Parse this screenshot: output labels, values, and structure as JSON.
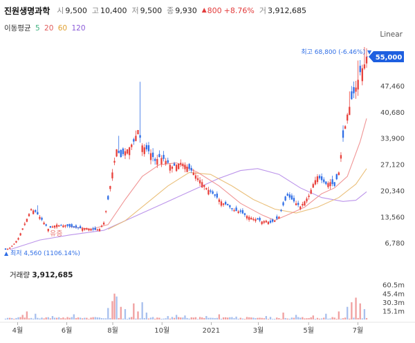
{
  "header": {
    "name": "진원생명과학",
    "open_label": "시",
    "open": "9,500",
    "high_label": "고",
    "high": "10,400",
    "low_label": "저",
    "low": "9,500",
    "close_label": "종",
    "close": "9,930",
    "change_icon": "triangle-up-icon",
    "change": "800",
    "change_pct": "+8.76%",
    "volume_label": "거",
    "volume": "3,912,685"
  },
  "ma_legend": {
    "label": "이동평균",
    "periods": [
      {
        "value": "5",
        "color": "#3fb27f"
      },
      {
        "value": "20",
        "color": "#e05a5a"
      },
      {
        "value": "60",
        "color": "#e0a030"
      },
      {
        "value": "120",
        "color": "#8a5ad8"
      }
    ]
  },
  "scale_mode": "Linear",
  "price_badge": "55,000",
  "volume_title": {
    "label": "거래량",
    "value": "3,912,685"
  },
  "chart_data": {
    "type": "candlestick",
    "x_ticks": [
      "4월",
      "6월",
      "8월",
      "10월",
      "2021",
      "3월",
      "5월",
      "7월"
    ],
    "y_ticks": [
      6780,
      13560,
      20340,
      27120,
      33900,
      40680,
      47460
    ],
    "y_tick_labels": [
      "6,780",
      "13,560",
      "20,340",
      "27,120",
      "33,900",
      "40,680",
      "47,460"
    ],
    "ylim": [
      2500,
      57500
    ],
    "last_price": 55000,
    "max_annotation": {
      "label": "최고",
      "value": "68,800",
      "pct": "(-6.46%)"
    },
    "min_annotation": {
      "label": "최저",
      "value": "4,560",
      "pct": "(1106.14%)"
    },
    "marker_label": "유증",
    "price_path": [
      [
        0,
        5000
      ],
      [
        2,
        5500
      ],
      [
        4,
        6500
      ],
      [
        6,
        8000
      ],
      [
        8,
        10500
      ],
      [
        10,
        13000
      ],
      [
        12,
        15500
      ],
      [
        14,
        14800
      ],
      [
        16,
        13500
      ],
      [
        18,
        12000
      ],
      [
        20,
        10400
      ],
      [
        22,
        11000
      ],
      [
        24,
        11500
      ],
      [
        26,
        11200
      ],
      [
        28,
        11300
      ],
      [
        30,
        11000
      ],
      [
        32,
        10800
      ],
      [
        34,
        10600
      ],
      [
        36,
        10500
      ],
      [
        38,
        10600
      ],
      [
        40,
        10300
      ],
      [
        42,
        10100
      ],
      [
        44,
        10400
      ],
      [
        46,
        12000
      ],
      [
        48,
        18000
      ],
      [
        50,
        25000
      ],
      [
        52,
        31000
      ],
      [
        54,
        29000
      ],
      [
        56,
        30500
      ],
      [
        58,
        31500
      ],
      [
        60,
        33000
      ],
      [
        62,
        36000
      ],
      [
        64,
        32000
      ],
      [
        66,
        31000
      ],
      [
        68,
        30000
      ],
      [
        70,
        28000
      ],
      [
        72,
        29000
      ],
      [
        74,
        28500
      ],
      [
        76,
        27500
      ],
      [
        78,
        26500
      ],
      [
        80,
        27000
      ],
      [
        82,
        27500
      ],
      [
        84,
        27000
      ],
      [
        86,
        26000
      ],
      [
        88,
        25000
      ],
      [
        90,
        23500
      ],
      [
        92,
        22500
      ],
      [
        94,
        21000
      ],
      [
        96,
        20000
      ],
      [
        98,
        19000
      ],
      [
        100,
        18000
      ],
      [
        102,
        17000
      ],
      [
        104,
        16500
      ],
      [
        106,
        15500
      ],
      [
        108,
        15000
      ],
      [
        110,
        14800
      ],
      [
        112,
        14000
      ],
      [
        114,
        13500
      ],
      [
        116,
        13000
      ],
      [
        118,
        12800
      ],
      [
        120,
        12300
      ],
      [
        122,
        12500
      ],
      [
        124,
        12000
      ],
      [
        126,
        12500
      ],
      [
        128,
        13500
      ],
      [
        130,
        16500
      ],
      [
        132,
        19000
      ],
      [
        134,
        18000
      ],
      [
        136,
        17000
      ],
      [
        138,
        16200
      ],
      [
        140,
        17500
      ],
      [
        142,
        19000
      ],
      [
        144,
        22000
      ],
      [
        146,
        24000
      ],
      [
        148,
        23000
      ],
      [
        150,
        22000
      ],
      [
        152,
        22500
      ],
      [
        154,
        21500
      ],
      [
        156,
        25000
      ],
      [
        158,
        34000
      ],
      [
        160,
        40000
      ],
      [
        162,
        44000
      ],
      [
        164,
        47000
      ],
      [
        166,
        51000
      ],
      [
        168,
        53000
      ],
      [
        169,
        55000
      ]
    ],
    "spikes": [
      [
        15,
        16500
      ],
      [
        53,
        34500
      ],
      [
        63,
        48500
      ],
      [
        161,
        46000
      ],
      [
        165,
        54000
      ],
      [
        168,
        57500
      ]
    ],
    "ma20": [
      [
        30,
        11000
      ],
      [
        40,
        10300
      ],
      [
        48,
        11500
      ],
      [
        56,
        18000
      ],
      [
        64,
        24000
      ],
      [
        72,
        27000
      ],
      [
        80,
        27500
      ],
      [
        90,
        25000
      ],
      [
        100,
        21500
      ],
      [
        110,
        17000
      ],
      [
        120,
        14000
      ],
      [
        126,
        12600
      ],
      [
        132,
        14000
      ],
      [
        140,
        16000
      ],
      [
        148,
        19500
      ],
      [
        154,
        21000
      ],
      [
        160,
        24000
      ],
      [
        166,
        33000
      ],
      [
        169,
        39000
      ]
    ],
    "ma60": [
      [
        48,
        10300
      ],
      [
        56,
        12500
      ],
      [
        66,
        17000
      ],
      [
        76,
        21500
      ],
      [
        86,
        25000
      ],
      [
        96,
        24500
      ],
      [
        106,
        21500
      ],
      [
        116,
        18000
      ],
      [
        126,
        15500
      ],
      [
        136,
        14500
      ],
      [
        146,
        16000
      ],
      [
        156,
        18500
      ],
      [
        164,
        22000
      ],
      [
        169,
        26000
      ]
    ],
    "ma120": [
      [
        2,
        5000
      ],
      [
        16,
        7500
      ],
      [
        30,
        8800
      ],
      [
        46,
        10000
      ],
      [
        60,
        13500
      ],
      [
        74,
        17000
      ],
      [
        88,
        20500
      ],
      [
        100,
        23500
      ],
      [
        110,
        25500
      ],
      [
        118,
        26000
      ],
      [
        128,
        24500
      ],
      [
        138,
        21000
      ],
      [
        148,
        18500
      ],
      [
        158,
        17500
      ],
      [
        164,
        17800
      ],
      [
        169,
        20000
      ]
    ],
    "volume_axis": [
      "60.5m",
      "45.4m",
      "30.3m",
      "15.1m"
    ],
    "volume_max": 65,
    "volume_spikes": [
      [
        8,
        8
      ],
      [
        10,
        14
      ],
      [
        14,
        10
      ],
      [
        22,
        6
      ],
      [
        32,
        9
      ],
      [
        48,
        20
      ],
      [
        50,
        32
      ],
      [
        51,
        45
      ],
      [
        52,
        40
      ],
      [
        54,
        22
      ],
      [
        56,
        18
      ],
      [
        60,
        28
      ],
      [
        62,
        14
      ],
      [
        64,
        30
      ],
      [
        66,
        12
      ],
      [
        76,
        6
      ],
      [
        80,
        8
      ],
      [
        84,
        7
      ],
      [
        94,
        6
      ],
      [
        100,
        9
      ],
      [
        108,
        5
      ],
      [
        122,
        6
      ],
      [
        130,
        12
      ],
      [
        136,
        8
      ],
      [
        144,
        7
      ],
      [
        150,
        10
      ],
      [
        156,
        14
      ],
      [
        160,
        22
      ],
      [
        162,
        30
      ],
      [
        164,
        38
      ],
      [
        166,
        28
      ],
      [
        168,
        18
      ]
    ]
  }
}
